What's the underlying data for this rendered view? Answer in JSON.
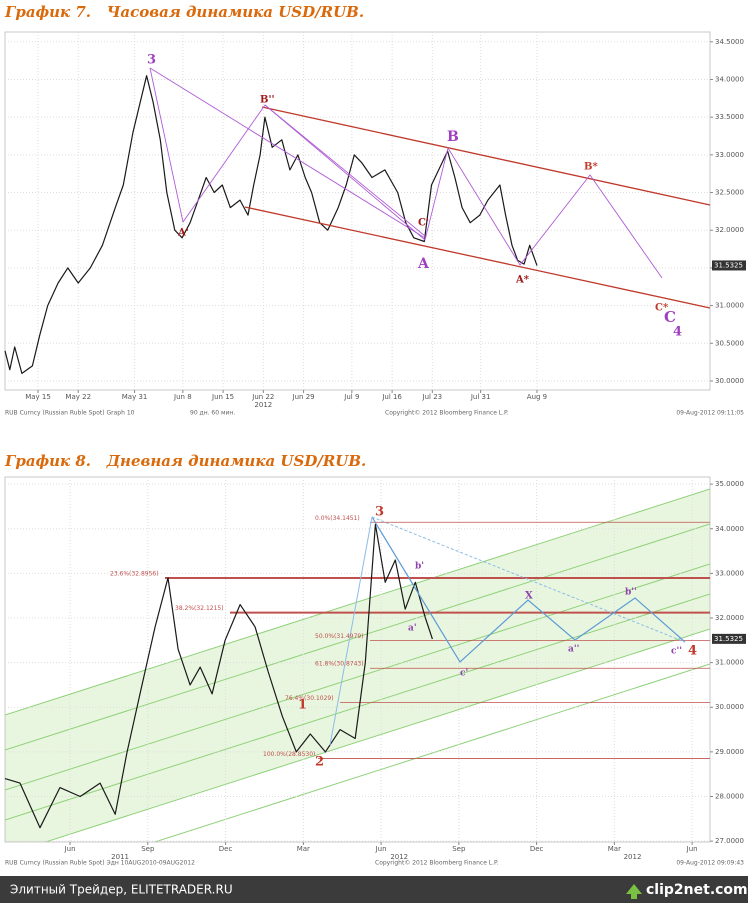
{
  "chart_data": [
    {
      "type": "line",
      "title": "График 7.   Часовая динамика USD/RUB.",
      "color": "#1a1a1a",
      "grid": true,
      "x": [
        -4.1,
        -3.5,
        -2.9,
        -2.0,
        -0.7,
        0.2,
        1.2,
        2.5,
        3.7,
        5.0,
        6.5,
        8.0,
        9.6,
        10.6,
        11.8,
        13.5,
        14.3,
        15.2,
        16.0,
        17.0,
        17.9,
        18.9,
        19.9,
        20.9,
        21.9,
        22.9,
        23.9,
        25.1,
        26.1,
        26.8,
        27.6,
        28.2,
        29.1,
        30.3,
        31.3,
        32.3,
        33.2,
        34.0,
        35.0,
        36.0,
        37.3,
        38.3,
        39.3,
        40.2,
        41.5,
        43.1,
        44.7,
        45.7,
        46.7,
        48.0,
        48.9,
        50.9,
        51.8,
        52.7,
        53.7,
        54.9,
        55.9,
        57.4,
        58.1,
        58.9,
        59.6,
        60.4,
        61.1,
        62.0
      ],
      "values": [
        30.4,
        30.15,
        30.45,
        30.1,
        30.2,
        30.6,
        31.0,
        31.3,
        31.5,
        31.3,
        31.5,
        31.8,
        32.3,
        32.6,
        33.3,
        34.05,
        33.7,
        33.2,
        32.5,
        32.0,
        31.9,
        32.1,
        32.4,
        32.7,
        32.5,
        32.6,
        32.3,
        32.4,
        32.2,
        32.6,
        33.0,
        33.5,
        33.1,
        33.2,
        32.8,
        33.0,
        32.7,
        32.5,
        32.1,
        32.0,
        32.3,
        32.6,
        33.0,
        32.9,
        32.7,
        32.8,
        32.5,
        32.1,
        31.9,
        31.85,
        32.6,
        33.05,
        32.7,
        32.3,
        32.1,
        32.2,
        32.4,
        32.6,
        32.2,
        31.8,
        31.6,
        31.55,
        31.8,
        31.53
      ],
      "xlim": [
        -4.1,
        83.5
      ],
      "xticks": [
        {
          "value": 0,
          "label": "May 15"
        },
        {
          "value": 5,
          "label": "May 22"
        },
        {
          "value": 12,
          "label": "May 31"
        },
        {
          "value": 18,
          "label": "Jun 8"
        },
        {
          "value": 23,
          "label": "Jun 15"
        },
        {
          "value": 28,
          "label": "Jun 22"
        },
        {
          "value": 33,
          "label": "Jun 29"
        },
        {
          "value": 39,
          "label": "Jul 9"
        },
        {
          "value": 44,
          "label": "Jul 16"
        },
        {
          "value": 49,
          "label": "Jul 23"
        },
        {
          "value": 55,
          "label": "Jul 31"
        },
        {
          "value": 62,
          "label": "Aug 9"
        }
      ],
      "year_labels": [
        {
          "value": 28,
          "label": "2012"
        }
      ],
      "ylim": [
        29.88,
        34.63
      ],
      "yticks": [
        {
          "value": 30,
          "label": "30.0000"
        },
        {
          "value": 30.5,
          "label": "30.5000"
        },
        {
          "value": 31,
          "label": "31.0000"
        },
        {
          "value": 31.5,
          "label": "31.5000"
        },
        {
          "value": 32,
          "label": "32.0000"
        },
        {
          "value": 32.5,
          "label": "32.5000"
        },
        {
          "value": 33,
          "label": "33.0000"
        },
        {
          "value": 33.5,
          "label": "33.5000"
        },
        {
          "value": 34,
          "label": "34.0000"
        },
        {
          "value": 34.5,
          "label": "34.5000"
        }
      ],
      "last_price": 31.5325,
      "annotations": [
        "3",
        "B''",
        "B",
        "B*",
        "A'",
        "C'",
        "A",
        "A*",
        "C*",
        "C",
        "4"
      ],
      "notes": [
        "RUB Curncy (Russian Ruble Spot) Graph 10",
        "90 дн. 60 мин.",
        "Copyright© 2012 Bloomberg Finance L.P.",
        "09-Aug-2012 09:11:05"
      ]
    },
    {
      "type": "line",
      "title": "График 8.   Дневная динамика USD/RUB.",
      "color": "#1a1a1a",
      "grid": true,
      "x": [
        2.49,
        3.07,
        3.84,
        4.61,
        5.39,
        6.16,
        6.74,
        7.2,
        7.7,
        8.28,
        8.78,
        9.17,
        9.63,
        10.02,
        10.48,
        10.98,
        11.56,
        12.14,
        12.64,
        13.19,
        13.73,
        14.27,
        14.85,
        15.42,
        16.0,
        16.39,
        16.78,
        17.16,
        17.55,
        17.93,
        18.32,
        18.71,
        18.98
      ],
      "values": [
        28.4,
        28.3,
        27.3,
        28.2,
        28.0,
        28.3,
        27.6,
        29.0,
        30.3,
        31.8,
        32.9,
        31.3,
        30.5,
        30.9,
        30.3,
        31.5,
        32.3,
        31.8,
        30.8,
        29.8,
        29.0,
        29.4,
        29.0,
        29.5,
        29.3,
        31.0,
        34.1,
        32.8,
        33.3,
        32.2,
        32.8,
        32.0,
        31.53
      ],
      "xlim": [
        2.49,
        29.69
      ],
      "xticks": [
        {
          "value": 5,
          "label": "Jun"
        },
        {
          "value": 8,
          "label": "Sep"
        },
        {
          "value": 11,
          "label": "Dec"
        },
        {
          "value": 14,
          "label": "Mar"
        },
        {
          "value": 17,
          "label": "Jun"
        },
        {
          "value": 20,
          "label": "Sep"
        },
        {
          "value": 23,
          "label": "Dec"
        },
        {
          "value": 26,
          "label": "Mar"
        },
        {
          "value": 29,
          "label": "Jun"
        }
      ],
      "year_labels": [
        {
          "value": 6.93,
          "label": "2011"
        },
        {
          "value": 17.7,
          "label": "2012"
        },
        {
          "value": 26.7,
          "label": "2012"
        }
      ],
      "ylim": [
        26.98,
        35.16
      ],
      "yticks": [
        {
          "value": 27,
          "label": "27.0000"
        },
        {
          "value": 28,
          "label": "28.0000"
        },
        {
          "value": 29,
          "label": "29.0000"
        },
        {
          "value": 30,
          "label": "30.0000"
        },
        {
          "value": 31,
          "label": "31.0000"
        },
        {
          "value": 32,
          "label": "32.0000"
        },
        {
          "value": 33,
          "label": "33.0000"
        },
        {
          "value": 34,
          "label": "34.0000"
        },
        {
          "value": 35,
          "label": "35.0000"
        }
      ],
      "levels": [
        {
          "value": 34.1451,
          "label": "0.0%(34.1451)"
        },
        {
          "value": 32.8956,
          "label": "23.6%(32.8956)"
        },
        {
          "value": 32.1215,
          "label": "38.2%(32.1215)"
        },
        {
          "value": 31.4979,
          "label": "50.0%(31.4979)"
        },
        {
          "value": 30.8743,
          "label": "61.8%(30.8743)"
        },
        {
          "value": 30.1029,
          "label": "76.4%(30.1029)"
        },
        {
          "value": 28.853,
          "label": "100.0%(28.8530)"
        }
      ],
      "last_price": 31.5325,
      "annotations": [
        "3",
        "1",
        "2",
        "b'",
        "a'",
        "c'",
        "X",
        "a''",
        "b''",
        "c''",
        "4"
      ],
      "notes": [
        "RUB Curncy (Russian Ruble Spot) Эдн 10AUG2010-09AUG2012",
        "Copyright© 2012 Bloomberg Finance L.P.",
        "09-Aug-2012 09:09:43"
      ]
    }
  ],
  "footer": {
    "source": "Элитный Трейдер, ELITETRADER.RU",
    "logo": "clip2net.com"
  }
}
